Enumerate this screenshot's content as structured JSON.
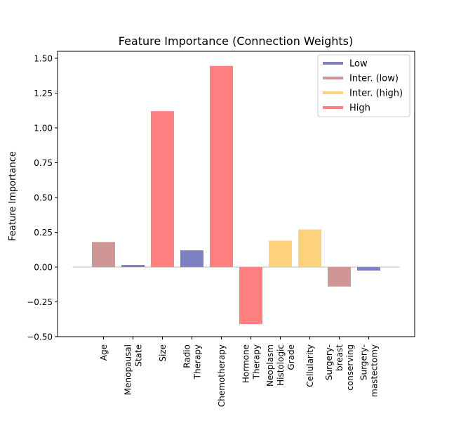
{
  "chart_data": {
    "type": "bar",
    "title": "Feature Importance (Connection Weights)",
    "xlabel": "",
    "ylabel": "Feature Importance",
    "ylim": [
      -0.5,
      1.55
    ],
    "yticks": [
      -0.5,
      -0.25,
      0.0,
      0.25,
      0.5,
      0.75,
      1.0,
      1.25,
      1.5
    ],
    "ytick_labels": [
      "−0.50",
      "−0.25",
      "0.00",
      "0.25",
      "0.50",
      "0.75",
      "1.00",
      "1.25",
      "1.50"
    ],
    "grid": false,
    "legend_position": "top-right",
    "categories": [
      {
        "label": "Age",
        "value": 0.18,
        "group": "Inter. (low)"
      },
      {
        "label": "Menopausal\nState",
        "value": 0.015,
        "group": "Low"
      },
      {
        "label": "Size",
        "value": 1.12,
        "group": "High"
      },
      {
        "label": "Radio\nTherapy",
        "value": 0.12,
        "group": "Low"
      },
      {
        "label": "Chemotherapy",
        "value": 1.445,
        "group": "High"
      },
      {
        "label": "Hormone\nTherapy",
        "value": -0.41,
        "group": "High"
      },
      {
        "label": "Neoplasm\nHistologic\nGrade",
        "value": 0.19,
        "group": "Inter. (high)"
      },
      {
        "label": "Cellularity",
        "value": 0.27,
        "group": "Inter. (high)"
      },
      {
        "label": "Surgery-\nbreast\nconserving",
        "value": -0.14,
        "group": "Inter. (low)"
      },
      {
        "label": "Surgery-\nmastectomy",
        "value": -0.025,
        "group": "Low"
      }
    ],
    "legend": [
      {
        "name": "Low",
        "color": "#7f7fc4"
      },
      {
        "name": "Inter. (low)",
        "color": "#d09595"
      },
      {
        "name": "Inter. (high)",
        "color": "#fed17c"
      },
      {
        "name": "High",
        "color": "#fe7f7f"
      }
    ],
    "zero_line_color": "#d3d3d3"
  }
}
